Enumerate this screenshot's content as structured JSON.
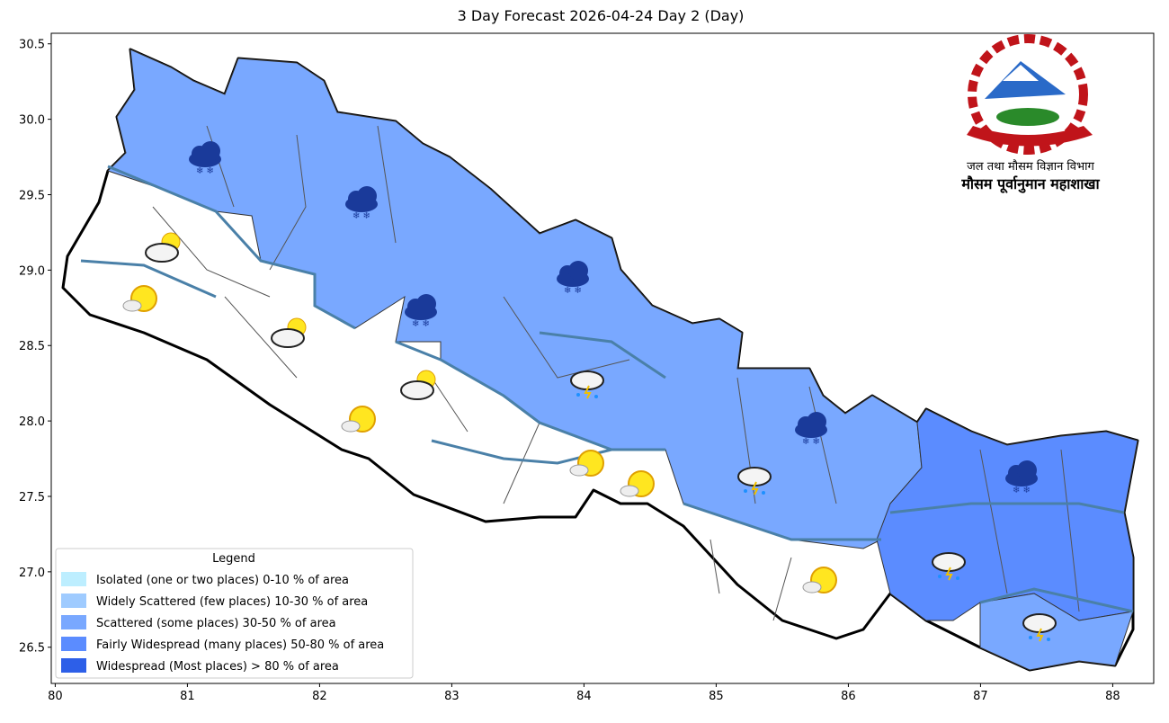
{
  "chart_data": {
    "type": "map",
    "title": "3 Day Forecast 2026-04-24 Day 2 (Day)",
    "xlim": [
      79.97,
      88.31
    ],
    "ylim": [
      26.26,
      30.57
    ],
    "xticks": [
      80,
      81,
      82,
      83,
      84,
      85,
      86,
      87,
      88
    ],
    "yticks": [
      26.5,
      {
        "value": 27,
        "label": "27.0"
      },
      27.5,
      {
        "value": 28,
        "label": "28.0"
      },
      28.5,
      {
        "value": 29,
        "label": "29.0"
      },
      29.5,
      {
        "value": 30,
        "label": "30.0"
      },
      30.5
    ],
    "legend": {
      "title": "Legend",
      "position": "lower left",
      "items": [
        {
          "name": "Isolated (one or two places)  0-10 % of area",
          "color": "#bdeeff"
        },
        {
          "name": "Widely Scattered (few places)  10-30 % of area",
          "color": "#9fcbff"
        },
        {
          "name": "Scattered (some places)  30-50 % of area",
          "color": "#79a8ff"
        },
        {
          "name": "Fairly Widespread (many places)  50-80 % of area",
          "color": "#5b8cff"
        },
        {
          "name": "Widespread (Most places) > 80 % of area",
          "color": "#2d5fe8"
        }
      ]
    }
  },
  "header": {
    "department": "जल तथा मौसम विज्ञान विभाग",
    "division": "मौसम पूर्वानुमान महाशाखा"
  }
}
